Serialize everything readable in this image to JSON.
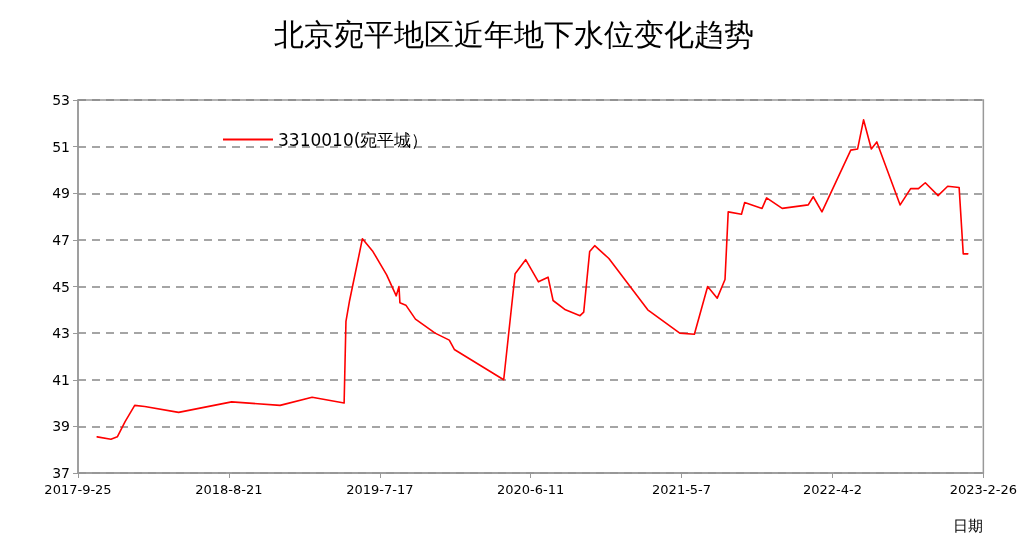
{
  "chart_data": {
    "type": "line",
    "title": "北京宛平地区近年地下水位变化趋势",
    "xlabel": "日期",
    "x": [
      "2017-11-06",
      "2017-12-06",
      "2017-12-20",
      "2018-01-06",
      "2018-01-27",
      "2018-02-18",
      "2018-05-03",
      "2018-08-27",
      "2018-12-11",
      "2019-02-19",
      "2019-04-30",
      "2019-05-04",
      "2019-05-12",
      "2019-06-09",
      "2019-07-02",
      "2019-08-01",
      "2019-08-22",
      "2019-08-28",
      "2019-08-30",
      "2019-09-12",
      "2019-10-03",
      "2019-11-15",
      "2019-12-16",
      "2019-12-27",
      "2020-04-13",
      "2020-05-08",
      "2020-05-31",
      "2020-06-28",
      "2020-07-19",
      "2020-07-30",
      "2020-08-26",
      "2020-09-27",
      "2020-10-05",
      "2020-10-18",
      "2020-10-29",
      "2020-11-29",
      "2021-02-22",
      "2021-05-03",
      "2021-06-04",
      "2021-07-03",
      "2021-07-24",
      "2021-08-10",
      "2021-08-17",
      "2021-09-15",
      "2021-09-22",
      "2021-10-30",
      "2021-11-09",
      "2021-12-13",
      "2022-02-08",
      "2022-02-19",
      "2022-03-10",
      "2022-05-12",
      "2022-05-27",
      "2022-06-09",
      "2022-06-26",
      "2022-07-08",
      "2022-08-28",
      "2022-09-20",
      "2022-10-07",
      "2022-10-22",
      "2022-11-19",
      "2022-12-10",
      "2023-01-04",
      "2023-01-13",
      "2023-01-23"
    ],
    "series": [
      {
        "name": "3310010(宛平城）",
        "color": "#ff0000",
        "values": [
          38.55,
          38.45,
          38.55,
          39.2,
          39.9,
          39.85,
          39.6,
          40.05,
          39.9,
          40.25,
          40.0,
          43.5,
          44.4,
          47.05,
          46.5,
          45.5,
          44.6,
          45.0,
          44.3,
          44.2,
          43.6,
          43.0,
          42.7,
          42.3,
          41.0,
          45.55,
          46.15,
          45.2,
          45.4,
          44.4,
          44.0,
          43.75,
          43.9,
          46.5,
          46.75,
          46.2,
          44.0,
          43.0,
          42.95,
          45.0,
          44.5,
          45.3,
          48.2,
          48.1,
          48.6,
          48.35,
          48.8,
          48.35,
          48.5,
          48.85,
          48.2,
          50.85,
          50.9,
          52.15,
          50.9,
          51.2,
          48.5,
          49.2,
          49.2,
          49.45,
          48.9,
          49.3,
          49.25,
          46.4,
          46.4
        ]
      }
    ],
    "xlim": [
      "2017-09-25",
      "2023-02-26"
    ],
    "xticks": [
      {
        "value": "2017-09-25",
        "label": "2017-9-25"
      },
      {
        "value": "2018-08-21",
        "label": "2018-8-21"
      },
      {
        "value": "2019-07-17",
        "label": "2019-7-17"
      },
      {
        "value": "2020-06-11",
        "label": "2020-6-11"
      },
      {
        "value": "2021-05-07",
        "label": "2021-5-7"
      },
      {
        "value": "2022-04-02",
        "label": "2022-4-2"
      },
      {
        "value": "2023-02-26",
        "label": "2023-2-26"
      }
    ],
    "ylim": [
      37,
      53
    ],
    "yticks": [
      37,
      39,
      41,
      43,
      45,
      47,
      49,
      51,
      53
    ],
    "grid": "y",
    "legend": "top left",
    "marker": "none",
    "line_style": "solid"
  }
}
